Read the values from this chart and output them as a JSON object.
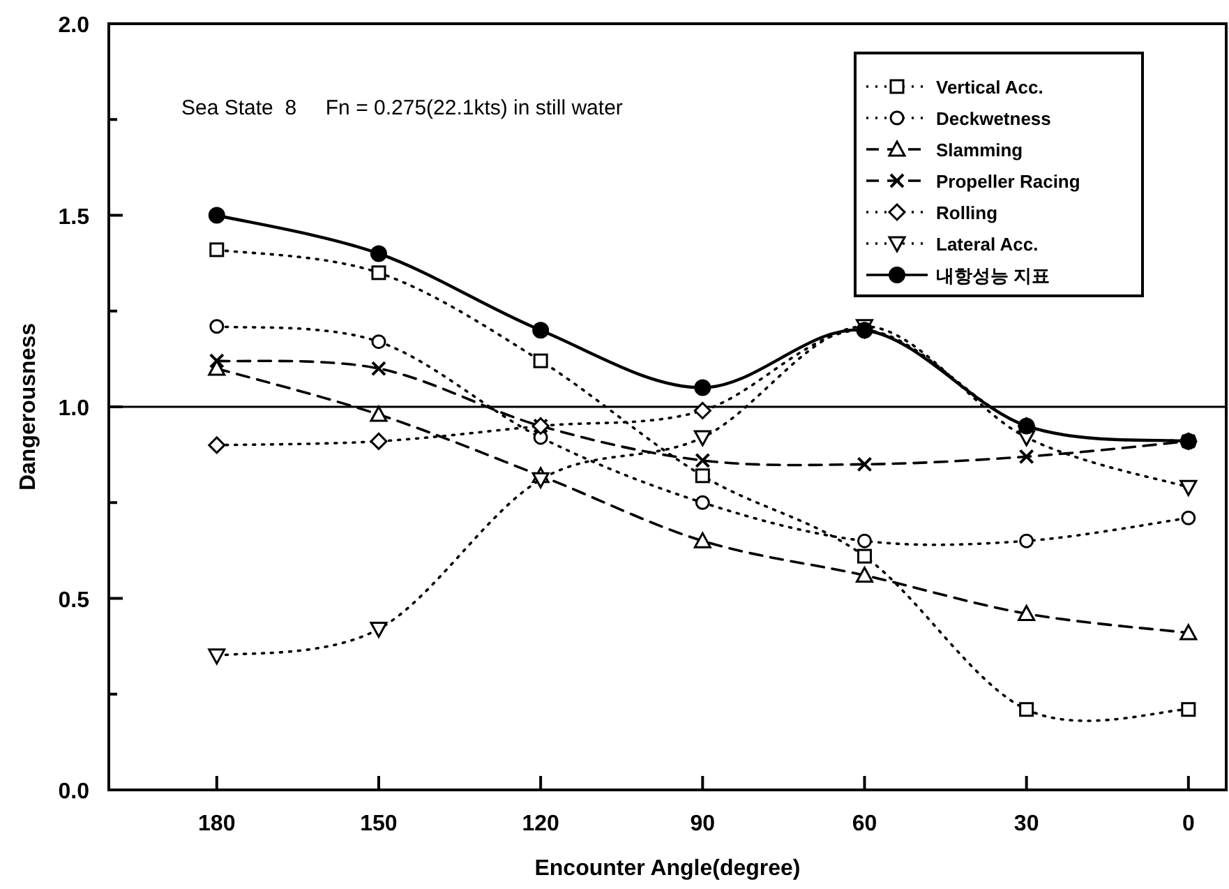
{
  "chart_data": {
    "type": "line",
    "xlabel": "Encounter Angle(degree)",
    "ylabel": "Dangerousness",
    "annotations": [
      "Sea State  8     Fn = 0.275(22.1kts) in still water"
    ],
    "x": [
      180,
      150,
      120,
      90,
      60,
      30,
      0
    ],
    "xlim": [
      200,
      -7
    ],
    "xticks": [
      180,
      150,
      120,
      90,
      60,
      30,
      0
    ],
    "ylim": [
      0,
      2
    ],
    "yticks": [
      {
        "value": 0,
        "label": "0.0"
      },
      {
        "value": 0.25,
        "label": null
      },
      {
        "value": 0.5,
        "label": "0.5"
      },
      {
        "value": 0.75,
        "label": null
      },
      {
        "value": 1,
        "label": "1.0"
      },
      {
        "value": 1.25,
        "label": null
      },
      {
        "value": 1.5,
        "label": "1.5"
      },
      {
        "value": 1.75,
        "label": null
      },
      {
        "value": 2,
        "label": "2.0"
      }
    ],
    "ref_lines": [
      {
        "axis": "y",
        "value": 1,
        "color": "#000000",
        "line_style": "solid"
      }
    ],
    "legend": "top right",
    "series": [
      {
        "name": "Vertical Acc.",
        "color": "#000000",
        "marker": "square",
        "line_style": "dotted",
        "values": [
          1.41,
          1.35,
          1.12,
          0.82,
          0.61,
          0.21,
          0.21
        ]
      },
      {
        "name": "Deckwetness",
        "color": "#000000",
        "marker": "circle",
        "line_style": "dotted",
        "values": [
          1.21,
          1.17,
          0.92,
          0.75,
          0.65,
          0.65,
          0.71
        ]
      },
      {
        "name": "Slamming",
        "color": "#000000",
        "marker": "triangle",
        "line_style": "dashed",
        "values": [
          1.1,
          0.98,
          0.82,
          0.65,
          0.56,
          0.46,
          0.41
        ]
      },
      {
        "name": "Propeller Racing",
        "color": "#000000",
        "marker": "cross",
        "line_style": "dashed",
        "values": [
          1.12,
          1.1,
          0.95,
          0.86,
          0.85,
          0.87,
          0.91
        ]
      },
      {
        "name": "Rolling",
        "color": "#000000",
        "marker": "diamond",
        "line_style": "dotted",
        "values": [
          0.9,
          0.91,
          0.95,
          0.99,
          1.2,
          0.95,
          0.91
        ]
      },
      {
        "name": "Lateral Acc.",
        "color": "#000000",
        "marker": "triangle-down",
        "line_style": "dotted",
        "values": [
          0.35,
          0.42,
          0.81,
          0.92,
          1.21,
          0.92,
          0.79
        ]
      },
      {
        "name": "내항성능 지표",
        "color": "#000000",
        "marker": "filled-circle",
        "line_style": "solid",
        "values": [
          1.5,
          1.4,
          1.2,
          1.05,
          1.2,
          0.95,
          0.91
        ]
      }
    ]
  }
}
